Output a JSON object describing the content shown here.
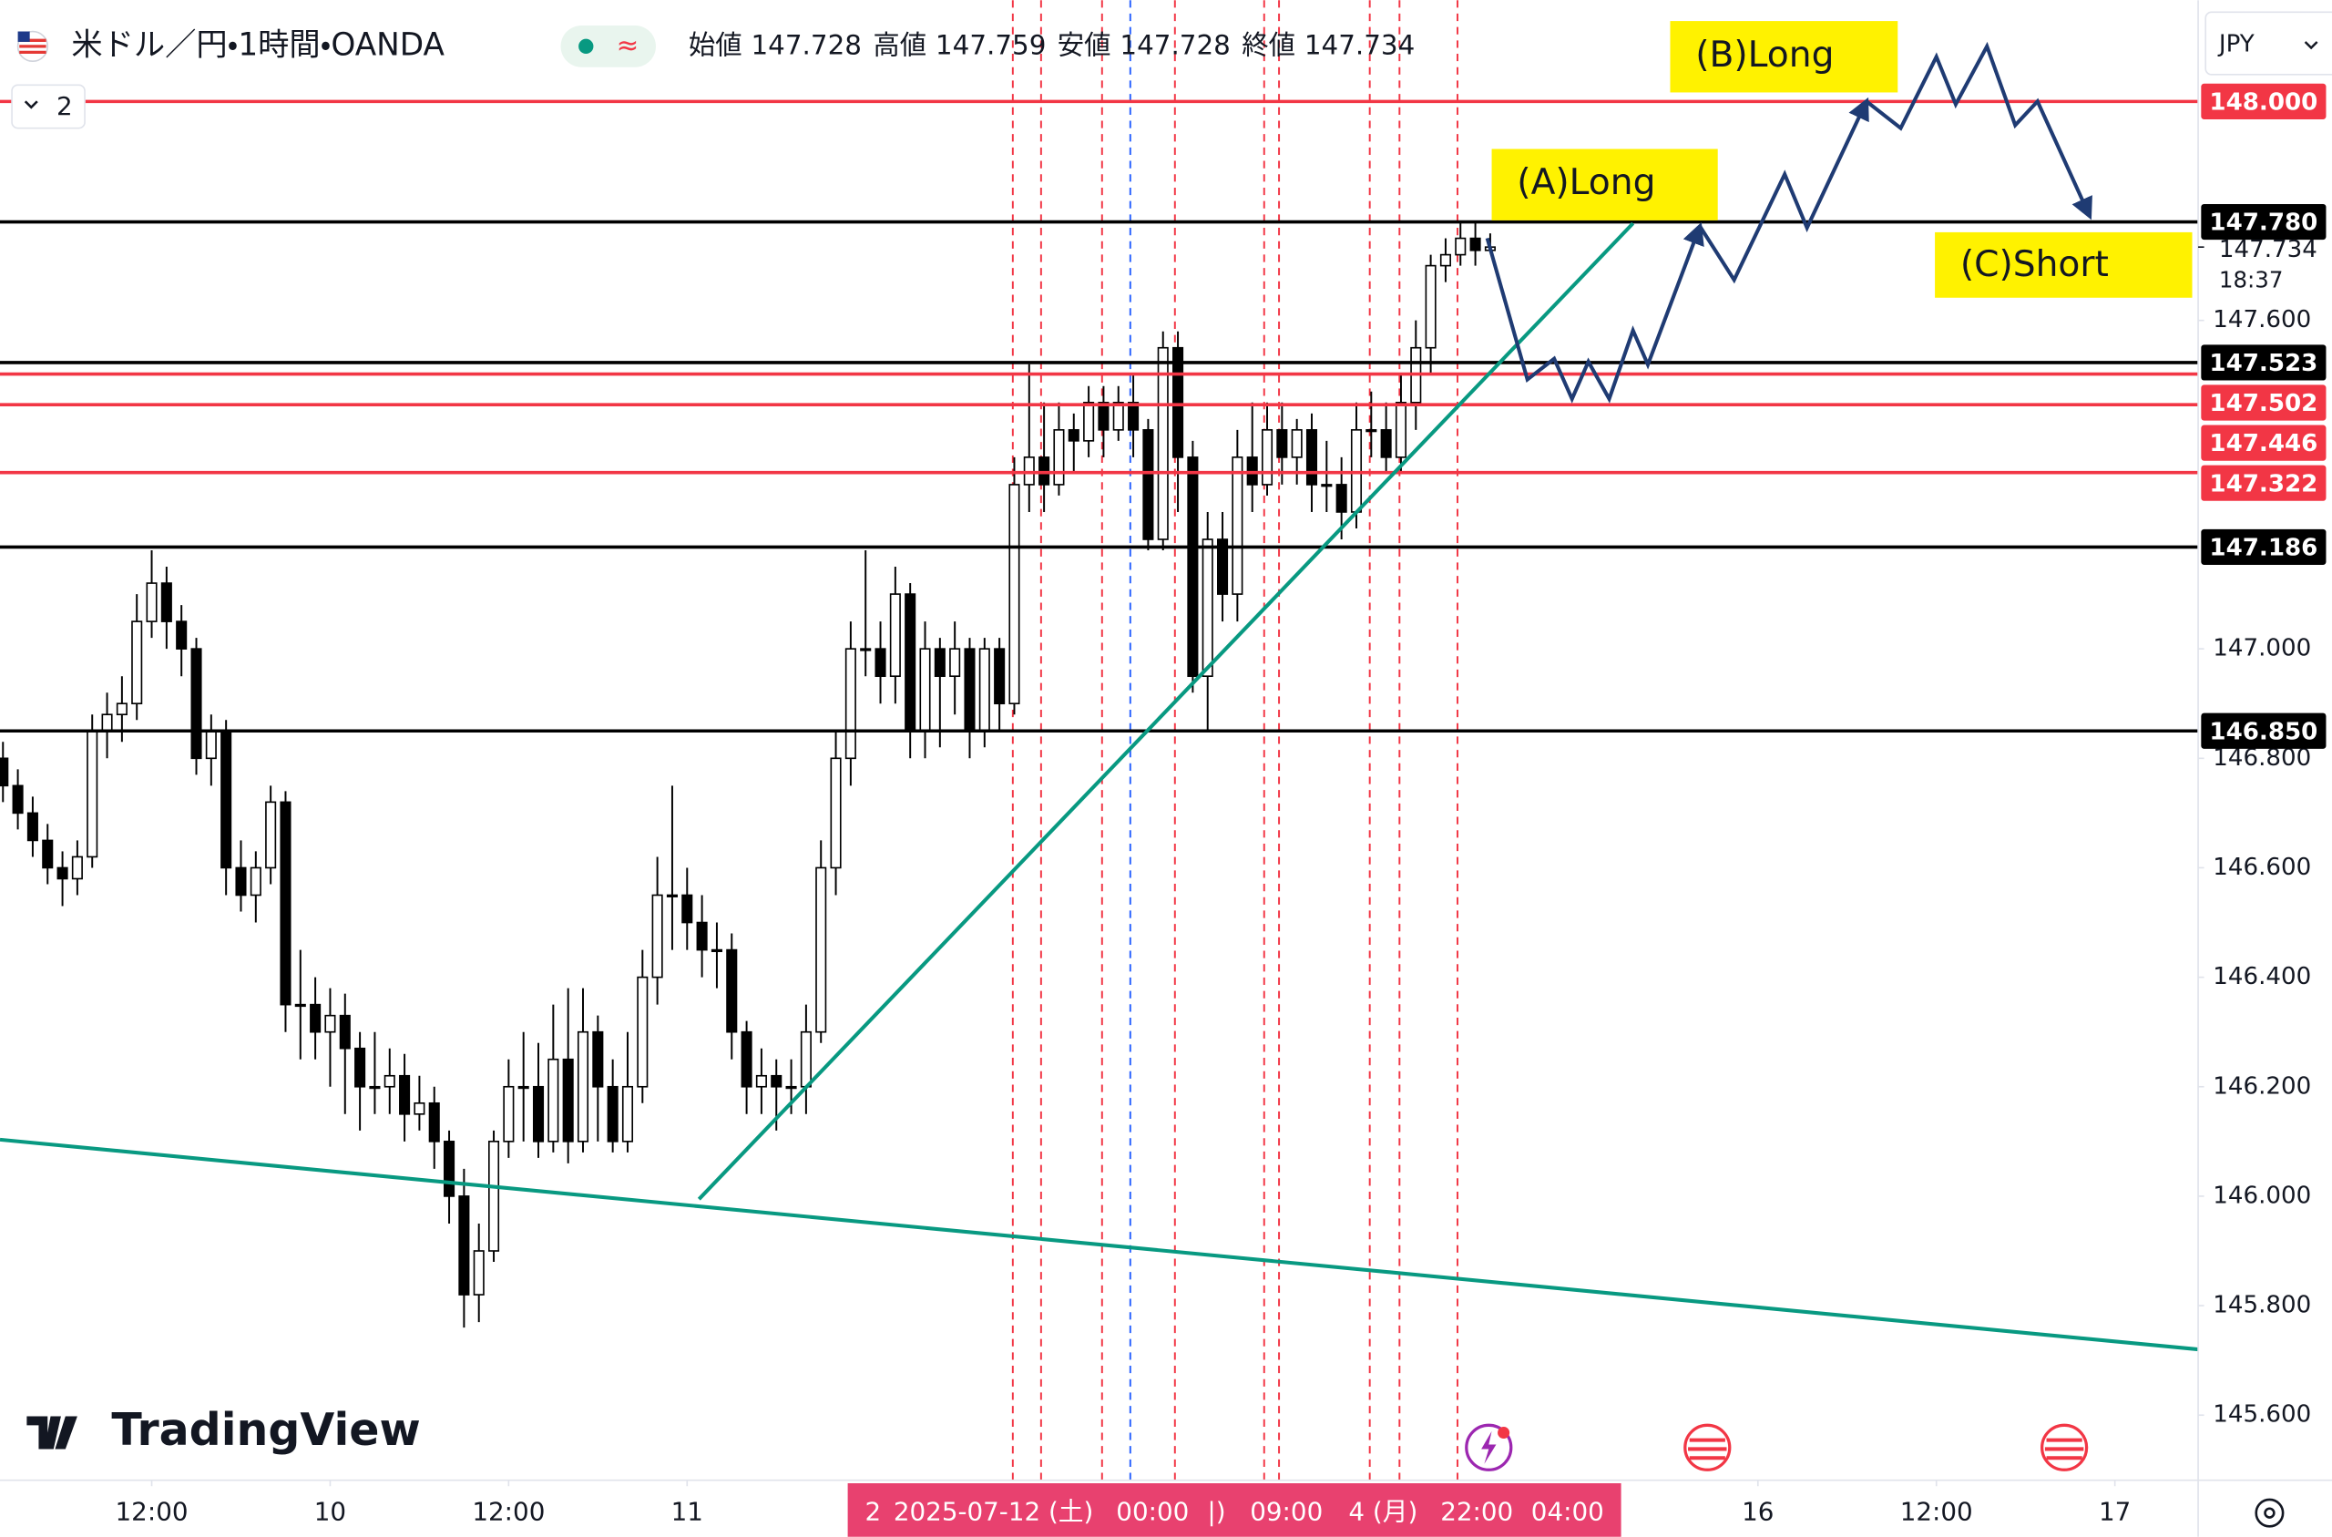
{
  "chart_data": {
    "type": "candlestick",
    "title": "米ドル／円・1時間・OANDA",
    "indicator_count": "2",
    "currency": "JPY",
    "watermark": "TradingView",
    "ohlc": [
      {
        "label": "始値",
        "value": 147.728
      },
      {
        "label": "高値",
        "value": 147.759
      },
      {
        "label": "安値",
        "value": 147.728
      },
      {
        "label": "終値",
        "value": 147.734
      }
    ],
    "up_color": "#ffffff",
    "down_color": "#000000",
    "candles": {
      "open": [
        146.8,
        146.75,
        146.7,
        146.65,
        146.6,
        146.58,
        146.62,
        146.85,
        146.88,
        146.9,
        147.05,
        147.12,
        147.05,
        147.0,
        146.8,
        146.85,
        146.6,
        146.55,
        146.6,
        146.72,
        146.35,
        146.35,
        146.3,
        146.33,
        146.27,
        146.2,
        146.2,
        146.22,
        146.15,
        146.17,
        146.1,
        146.0,
        145.82,
        145.9,
        146.1,
        146.2,
        146.2,
        146.1,
        146.25,
        146.1,
        146.3,
        146.2,
        146.1,
        146.2,
        146.4,
        146.55,
        146.55,
        146.5,
        146.45,
        146.45,
        146.3,
        146.2,
        146.22,
        146.2,
        146.2,
        146.3,
        146.6,
        146.8,
        147.0,
        147.0,
        146.95,
        147.1,
        146.85,
        147.0,
        146.95,
        147.0,
        146.85,
        147.0,
        146.9,
        147.3,
        147.35,
        147.3,
        147.4,
        147.38,
        147.45,
        147.4,
        147.45,
        147.4,
        147.2,
        147.55,
        147.35,
        146.95,
        147.2,
        147.1,
        147.35,
        147.3,
        147.4,
        147.35,
        147.4,
        147.3,
        147.3,
        147.25,
        147.4,
        147.4,
        147.35,
        147.45,
        147.55,
        147.7,
        147.72,
        147.75,
        147.728
      ],
      "high": [
        146.83,
        146.78,
        146.73,
        146.68,
        146.63,
        146.65,
        146.88,
        146.92,
        146.95,
        147.1,
        147.18,
        147.15,
        147.08,
        147.02,
        146.88,
        146.87,
        146.65,
        146.63,
        146.75,
        146.74,
        146.45,
        146.4,
        146.38,
        146.37,
        146.3,
        146.3,
        146.27,
        146.26,
        146.22,
        146.2,
        146.12,
        146.05,
        145.95,
        146.12,
        146.25,
        146.3,
        146.28,
        146.35,
        146.38,
        146.38,
        146.33,
        146.25,
        146.3,
        146.45,
        146.62,
        146.75,
        146.6,
        146.55,
        146.5,
        146.48,
        146.32,
        146.27,
        146.25,
        146.25,
        146.35,
        146.65,
        146.85,
        147.05,
        147.18,
        147.05,
        147.15,
        147.12,
        147.05,
        147.02,
        147.05,
        147.02,
        147.02,
        147.02,
        147.35,
        147.52,
        147.45,
        147.45,
        147.43,
        147.48,
        147.48,
        147.48,
        147.5,
        147.42,
        147.58,
        147.58,
        147.38,
        147.25,
        147.25,
        147.4,
        147.45,
        147.45,
        147.45,
        147.42,
        147.43,
        147.38,
        147.35,
        147.45,
        147.47,
        147.45,
        147.5,
        147.6,
        147.72,
        147.75,
        147.78,
        147.78,
        147.759
      ],
      "low": [
        146.72,
        146.67,
        146.62,
        146.57,
        146.53,
        146.55,
        146.6,
        146.8,
        146.83,
        146.87,
        147.02,
        147.0,
        146.95,
        146.77,
        146.75,
        146.55,
        146.52,
        146.5,
        146.57,
        146.3,
        146.25,
        146.25,
        146.2,
        146.15,
        146.12,
        146.15,
        146.15,
        146.1,
        146.12,
        146.05,
        145.95,
        145.76,
        145.77,
        145.88,
        146.07,
        146.1,
        146.07,
        146.08,
        146.06,
        146.08,
        146.1,
        146.08,
        146.08,
        146.17,
        146.35,
        146.45,
        146.45,
        146.4,
        146.38,
        146.25,
        146.15,
        146.15,
        146.12,
        146.15,
        146.15,
        146.28,
        146.55,
        146.75,
        146.95,
        146.9,
        146.9,
        146.8,
        146.8,
        146.82,
        146.88,
        146.8,
        146.82,
        146.85,
        146.88,
        147.25,
        147.25,
        147.28,
        147.32,
        147.35,
        147.35,
        147.38,
        147.35,
        147.18,
        147.18,
        147.25,
        146.92,
        146.85,
        147.05,
        147.05,
        147.25,
        147.28,
        147.3,
        147.3,
        147.25,
        147.25,
        147.2,
        147.22,
        147.35,
        147.32,
        147.32,
        147.4,
        147.5,
        147.67,
        147.7,
        147.7,
        147.728
      ],
      "close": [
        146.75,
        146.7,
        146.65,
        146.6,
        146.58,
        146.62,
        146.85,
        146.88,
        146.9,
        147.05,
        147.12,
        147.05,
        147.0,
        146.8,
        146.85,
        146.6,
        146.55,
        146.6,
        146.72,
        146.35,
        146.35,
        146.3,
        146.33,
        146.27,
        146.2,
        146.2,
        146.22,
        146.15,
        146.17,
        146.1,
        146.0,
        145.82,
        145.9,
        146.1,
        146.2,
        146.2,
        146.1,
        146.25,
        146.1,
        146.3,
        146.2,
        146.1,
        146.2,
        146.4,
        146.55,
        146.55,
        146.5,
        146.45,
        146.45,
        146.3,
        146.2,
        146.22,
        146.2,
        146.2,
        146.3,
        146.6,
        146.8,
        147.0,
        147.0,
        146.95,
        147.1,
        146.85,
        147.0,
        146.95,
        147.0,
        146.85,
        147.0,
        146.9,
        147.3,
        147.35,
        147.3,
        147.4,
        147.38,
        147.45,
        147.4,
        147.45,
        147.4,
        147.2,
        147.55,
        147.35,
        146.95,
        147.2,
        147.1,
        147.35,
        147.3,
        147.4,
        147.35,
        147.4,
        147.3,
        147.3,
        147.25,
        147.4,
        147.4,
        147.35,
        147.45,
        147.55,
        147.7,
        147.72,
        147.75,
        147.728,
        147.734
      ]
    },
    "xlim": [
      -0.2,
      147.6
    ],
    "xticks": [
      {
        "value": 10,
        "label": "12:00"
      },
      {
        "value": 22,
        "label": "10"
      },
      {
        "value": 34,
        "label": "12:00"
      },
      {
        "value": 46,
        "label": "11"
      },
      {
        "value": 118,
        "label": "16"
      },
      {
        "value": 130,
        "label": "12:00"
      },
      {
        "value": 142,
        "label": "17"
      }
    ],
    "ylim": [
      145.481,
      148.185
    ],
    "yticks": [
      {
        "value": 147.6,
        "label": "147.600"
      },
      {
        "value": 147,
        "label": "147.000"
      },
      {
        "value": 146.8,
        "label": "146.800"
      },
      {
        "value": 146.6,
        "label": "146.600"
      },
      {
        "value": 146.4,
        "label": "146.400"
      },
      {
        "value": 146.2,
        "label": "146.200"
      },
      {
        "value": 146,
        "label": "146.000"
      },
      {
        "value": 145.8,
        "label": "145.800"
      },
      {
        "value": 145.6,
        "label": "145.600"
      }
    ],
    "grid": false,
    "levels": [
      {
        "value": 148,
        "label": "148.000",
        "color": "#f23645"
      },
      {
        "value": 147.78,
        "label": "147.780",
        "color": "#000000"
      },
      {
        "value": 147.523,
        "label": "147.523",
        "color": "#000000"
      },
      {
        "value": 147.502,
        "label": "147.502",
        "color": "#f23645"
      },
      {
        "value": 147.446,
        "label": "147.446",
        "color": "#f23645"
      },
      {
        "value": 147.322,
        "label": "147.322",
        "color": "#f23645"
      },
      {
        "value": 147.186,
        "label": "147.186",
        "color": "#000000"
      },
      {
        "value": 146.85,
        "label": "146.850",
        "color": "#000000"
      }
    ],
    "last_price": {
      "value": 147.734,
      "label": "147.734"
    },
    "countdown": "18:37",
    "annotations": [
      "(A)Long",
      "(B)Long",
      "(C)Short"
    ],
    "range_labels": [
      "2",
      "2025-07-12 (土)",
      "00:00",
      "|)",
      "09:00",
      "4 (月)",
      "22:00",
      "04:00"
    ]
  }
}
